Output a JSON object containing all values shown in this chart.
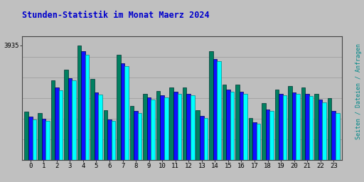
{
  "title": "Stunden-Statistik im Monat Maerz 2024",
  "ylabel_right": "Seiten / Dateien / Anfragen",
  "ytick_label": "3935",
  "x_labels": [
    "0",
    "1",
    "2",
    "3",
    "4",
    "5",
    "6",
    "7",
    "8",
    "9",
    "10",
    "11",
    "12",
    "13",
    "14",
    "15",
    "16",
    "17",
    "18",
    "19",
    "20",
    "21",
    "22",
    "23"
  ],
  "seiten": [
    320,
    310,
    530,
    600,
    760,
    540,
    330,
    700,
    360,
    440,
    460,
    480,
    480,
    330,
    720,
    500,
    500,
    280,
    380,
    470,
    490,
    480,
    440,
    410
  ],
  "dateien": [
    290,
    275,
    480,
    545,
    720,
    450,
    270,
    640,
    325,
    415,
    430,
    455,
    440,
    295,
    670,
    470,
    455,
    250,
    335,
    440,
    450,
    440,
    400,
    325
  ],
  "anfragen": [
    270,
    260,
    465,
    530,
    700,
    435,
    260,
    625,
    310,
    400,
    415,
    440,
    430,
    280,
    655,
    455,
    440,
    240,
    325,
    430,
    440,
    425,
    385,
    310
  ],
  "color_seiten": "#008060",
  "color_dateien": "#1010FF",
  "color_anfragen": "#00FFFF",
  "bg_color": "#C0C0C0",
  "plot_bg": "#BEBEBE",
  "title_color": "#0000CC",
  "grid_color": "#999999",
  "border_color": "#444444",
  "ylim": [
    0,
    820
  ],
  "ytick_pos": 760,
  "bar_width": 0.3,
  "bar_gap": 0.0
}
